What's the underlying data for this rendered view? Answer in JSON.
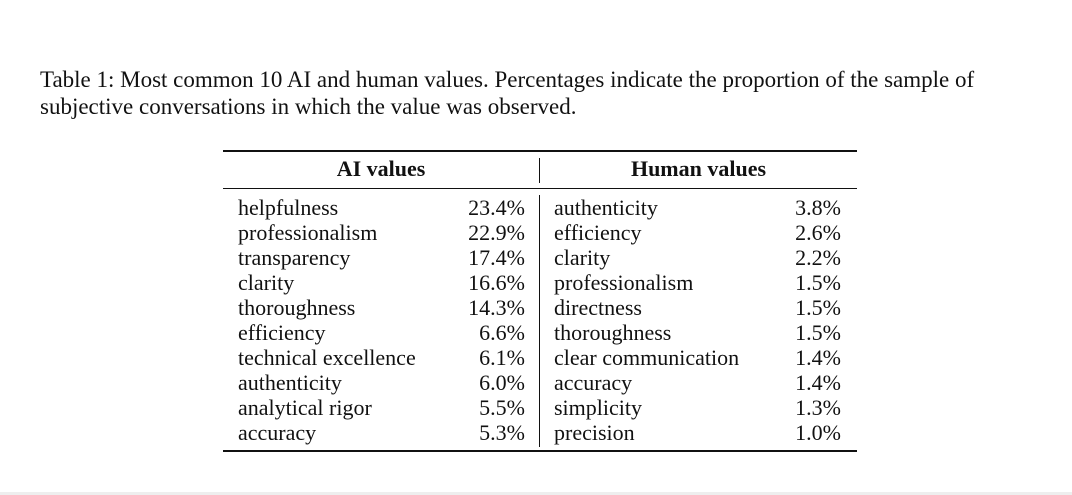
{
  "caption": "Table 1: Most common 10 AI and human values. Percentages indicate the proportion of the sample of subjective conversations in which the value was observed.",
  "table": {
    "headers": {
      "ai": "AI values",
      "human": "Human values"
    },
    "rows": [
      {
        "ai_value": "helpfulness",
        "ai_pct": "23.4%",
        "human_value": "authenticity",
        "human_pct": "3.8%"
      },
      {
        "ai_value": "professionalism",
        "ai_pct": "22.9%",
        "human_value": "efficiency",
        "human_pct": "2.6%"
      },
      {
        "ai_value": "transparency",
        "ai_pct": "17.4%",
        "human_value": "clarity",
        "human_pct": "2.2%"
      },
      {
        "ai_value": "clarity",
        "ai_pct": "16.6%",
        "human_value": "professionalism",
        "human_pct": "1.5%"
      },
      {
        "ai_value": "thoroughness",
        "ai_pct": "14.3%",
        "human_value": "directness",
        "human_pct": "1.5%"
      },
      {
        "ai_value": "efficiency",
        "ai_pct": "6.6%",
        "human_value": "thoroughness",
        "human_pct": "1.5%"
      },
      {
        "ai_value": "technical excellence",
        "ai_pct": "6.1%",
        "human_value": "clear communication",
        "human_pct": "1.4%"
      },
      {
        "ai_value": "authenticity",
        "ai_pct": "6.0%",
        "human_value": "accuracy",
        "human_pct": "1.4%"
      },
      {
        "ai_value": "analytical rigor",
        "ai_pct": "5.5%",
        "human_value": "simplicity",
        "human_pct": "1.3%"
      },
      {
        "ai_value": "accuracy",
        "ai_pct": "5.3%",
        "human_value": "precision",
        "human_pct": "1.0%"
      }
    ]
  }
}
